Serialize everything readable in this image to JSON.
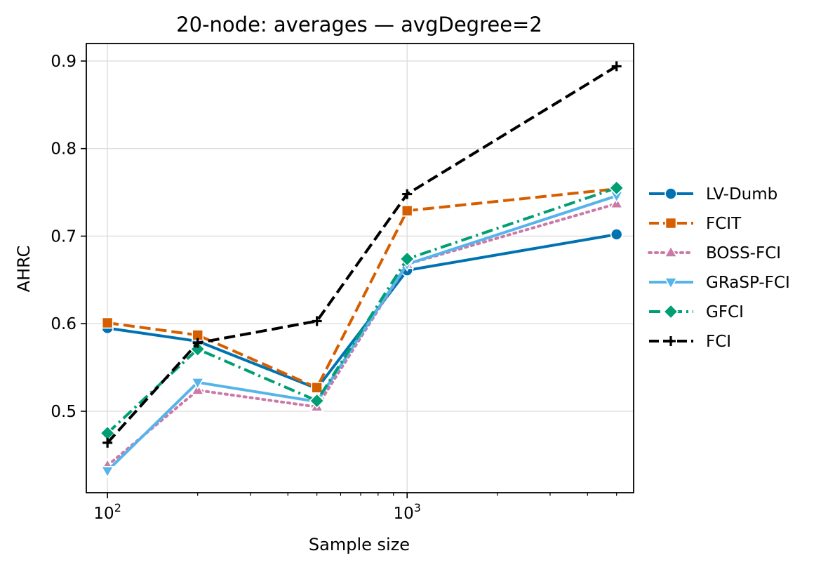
{
  "chart_data": {
    "type": "line",
    "title": "20-node: averages — avgDegree=2",
    "xlabel": "Sample size",
    "ylabel": "AHRC",
    "xscale": "log",
    "xlim": [
      85,
      5700
    ],
    "ylim": [
      0.407,
      0.92
    ],
    "grid": true,
    "legend_position": "right-outside",
    "x": [
      100,
      200,
      500,
      1000,
      5000
    ],
    "x_ticks": [
      {
        "value": 100,
        "base": "10",
        "exp": "2"
      },
      {
        "value": 1000,
        "base": "10",
        "exp": "3"
      }
    ],
    "x_minor_ticks": [
      200,
      300,
      400,
      500,
      600,
      700,
      800,
      900,
      2000,
      3000,
      4000,
      5000
    ],
    "y_ticks": [
      {
        "value": 0.5,
        "label": "0.5"
      },
      {
        "value": 0.6,
        "label": "0.6"
      },
      {
        "value": 0.7,
        "label": "0.7"
      },
      {
        "value": 0.8,
        "label": "0.8"
      },
      {
        "value": 0.9,
        "label": "0.9"
      }
    ],
    "series": [
      {
        "name": "LV-Dumb",
        "color": "#0072b2",
        "marker": "circle",
        "dash": "solid",
        "values": [
          0.595,
          0.58,
          0.526,
          0.661,
          0.702
        ]
      },
      {
        "name": "FCIT",
        "color": "#d55e00",
        "marker": "square",
        "dash": "dashed",
        "values": [
          0.601,
          0.587,
          0.527,
          0.729,
          0.754
        ]
      },
      {
        "name": "BOSS-FCI",
        "color": "#cc79a7",
        "marker": "triangle-up",
        "dash": "dotted",
        "values": [
          0.438,
          0.524,
          0.505,
          0.668,
          0.737
        ]
      },
      {
        "name": "GRaSP-FCI",
        "color": "#56b4e9",
        "marker": "triangle-down",
        "dash": "solid",
        "values": [
          0.432,
          0.533,
          0.511,
          0.668,
          0.746
        ]
      },
      {
        "name": "GFCI",
        "color": "#009e73",
        "marker": "diamond",
        "dash": "dashdot",
        "values": [
          0.475,
          0.571,
          0.512,
          0.674,
          0.755
        ]
      },
      {
        "name": "FCI",
        "color": "#000000",
        "marker": "plus",
        "dash": "dashed",
        "values": [
          0.464,
          0.578,
          0.603,
          0.748,
          0.894
        ]
      }
    ]
  }
}
